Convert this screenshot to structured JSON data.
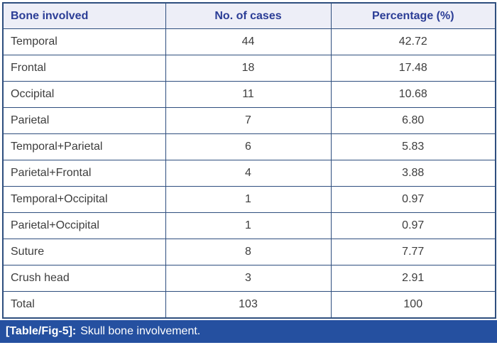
{
  "table": {
    "columns": [
      "Bone involved",
      "No. of cases",
      "Percentage (%)"
    ],
    "rows": [
      [
        "Temporal",
        "44",
        "42.72"
      ],
      [
        "Frontal",
        "18",
        "17.48"
      ],
      [
        "Occipital",
        "11",
        "10.68"
      ],
      [
        "Parietal",
        "7",
        "6.80"
      ],
      [
        "Temporal+Parietal",
        "6",
        "5.83"
      ],
      [
        "Parietal+Frontal",
        "4",
        "3.88"
      ],
      [
        "Temporal+Occipital",
        "1",
        "0.97"
      ],
      [
        "Parietal+Occipital",
        "1",
        "0.97"
      ],
      [
        "Suture",
        "8",
        "7.77"
      ],
      [
        "Crush head",
        "3",
        "2.91"
      ],
      [
        "Total",
        "103",
        "100"
      ]
    ]
  },
  "caption": {
    "label": "[Table/Fig-5]:",
    "text": "Skull bone involvement."
  },
  "colors": {
    "border": "#2e4e7e",
    "header_bg": "#edeef7",
    "header_text": "#2b3d96",
    "body_text": "#3d3d3d",
    "caption_bg": "#2550a0",
    "caption_text": "#ffffff"
  },
  "chart_data": {
    "type": "table",
    "title": "[Table/Fig-5]: Skull bone involvement.",
    "columns": [
      "Bone involved",
      "No. of cases",
      "Percentage (%)"
    ],
    "rows": [
      [
        "Temporal",
        44,
        42.72
      ],
      [
        "Frontal",
        18,
        17.48
      ],
      [
        "Occipital",
        11,
        10.68
      ],
      [
        "Parietal",
        7,
        6.8
      ],
      [
        "Temporal+Parietal",
        6,
        5.83
      ],
      [
        "Parietal+Frontal",
        4,
        3.88
      ],
      [
        "Temporal+Occipital",
        1,
        0.97
      ],
      [
        "Parietal+Occipital",
        1,
        0.97
      ],
      [
        "Suture",
        8,
        7.77
      ],
      [
        "Crush head",
        3,
        2.91
      ],
      [
        "Total",
        103,
        100
      ]
    ]
  }
}
